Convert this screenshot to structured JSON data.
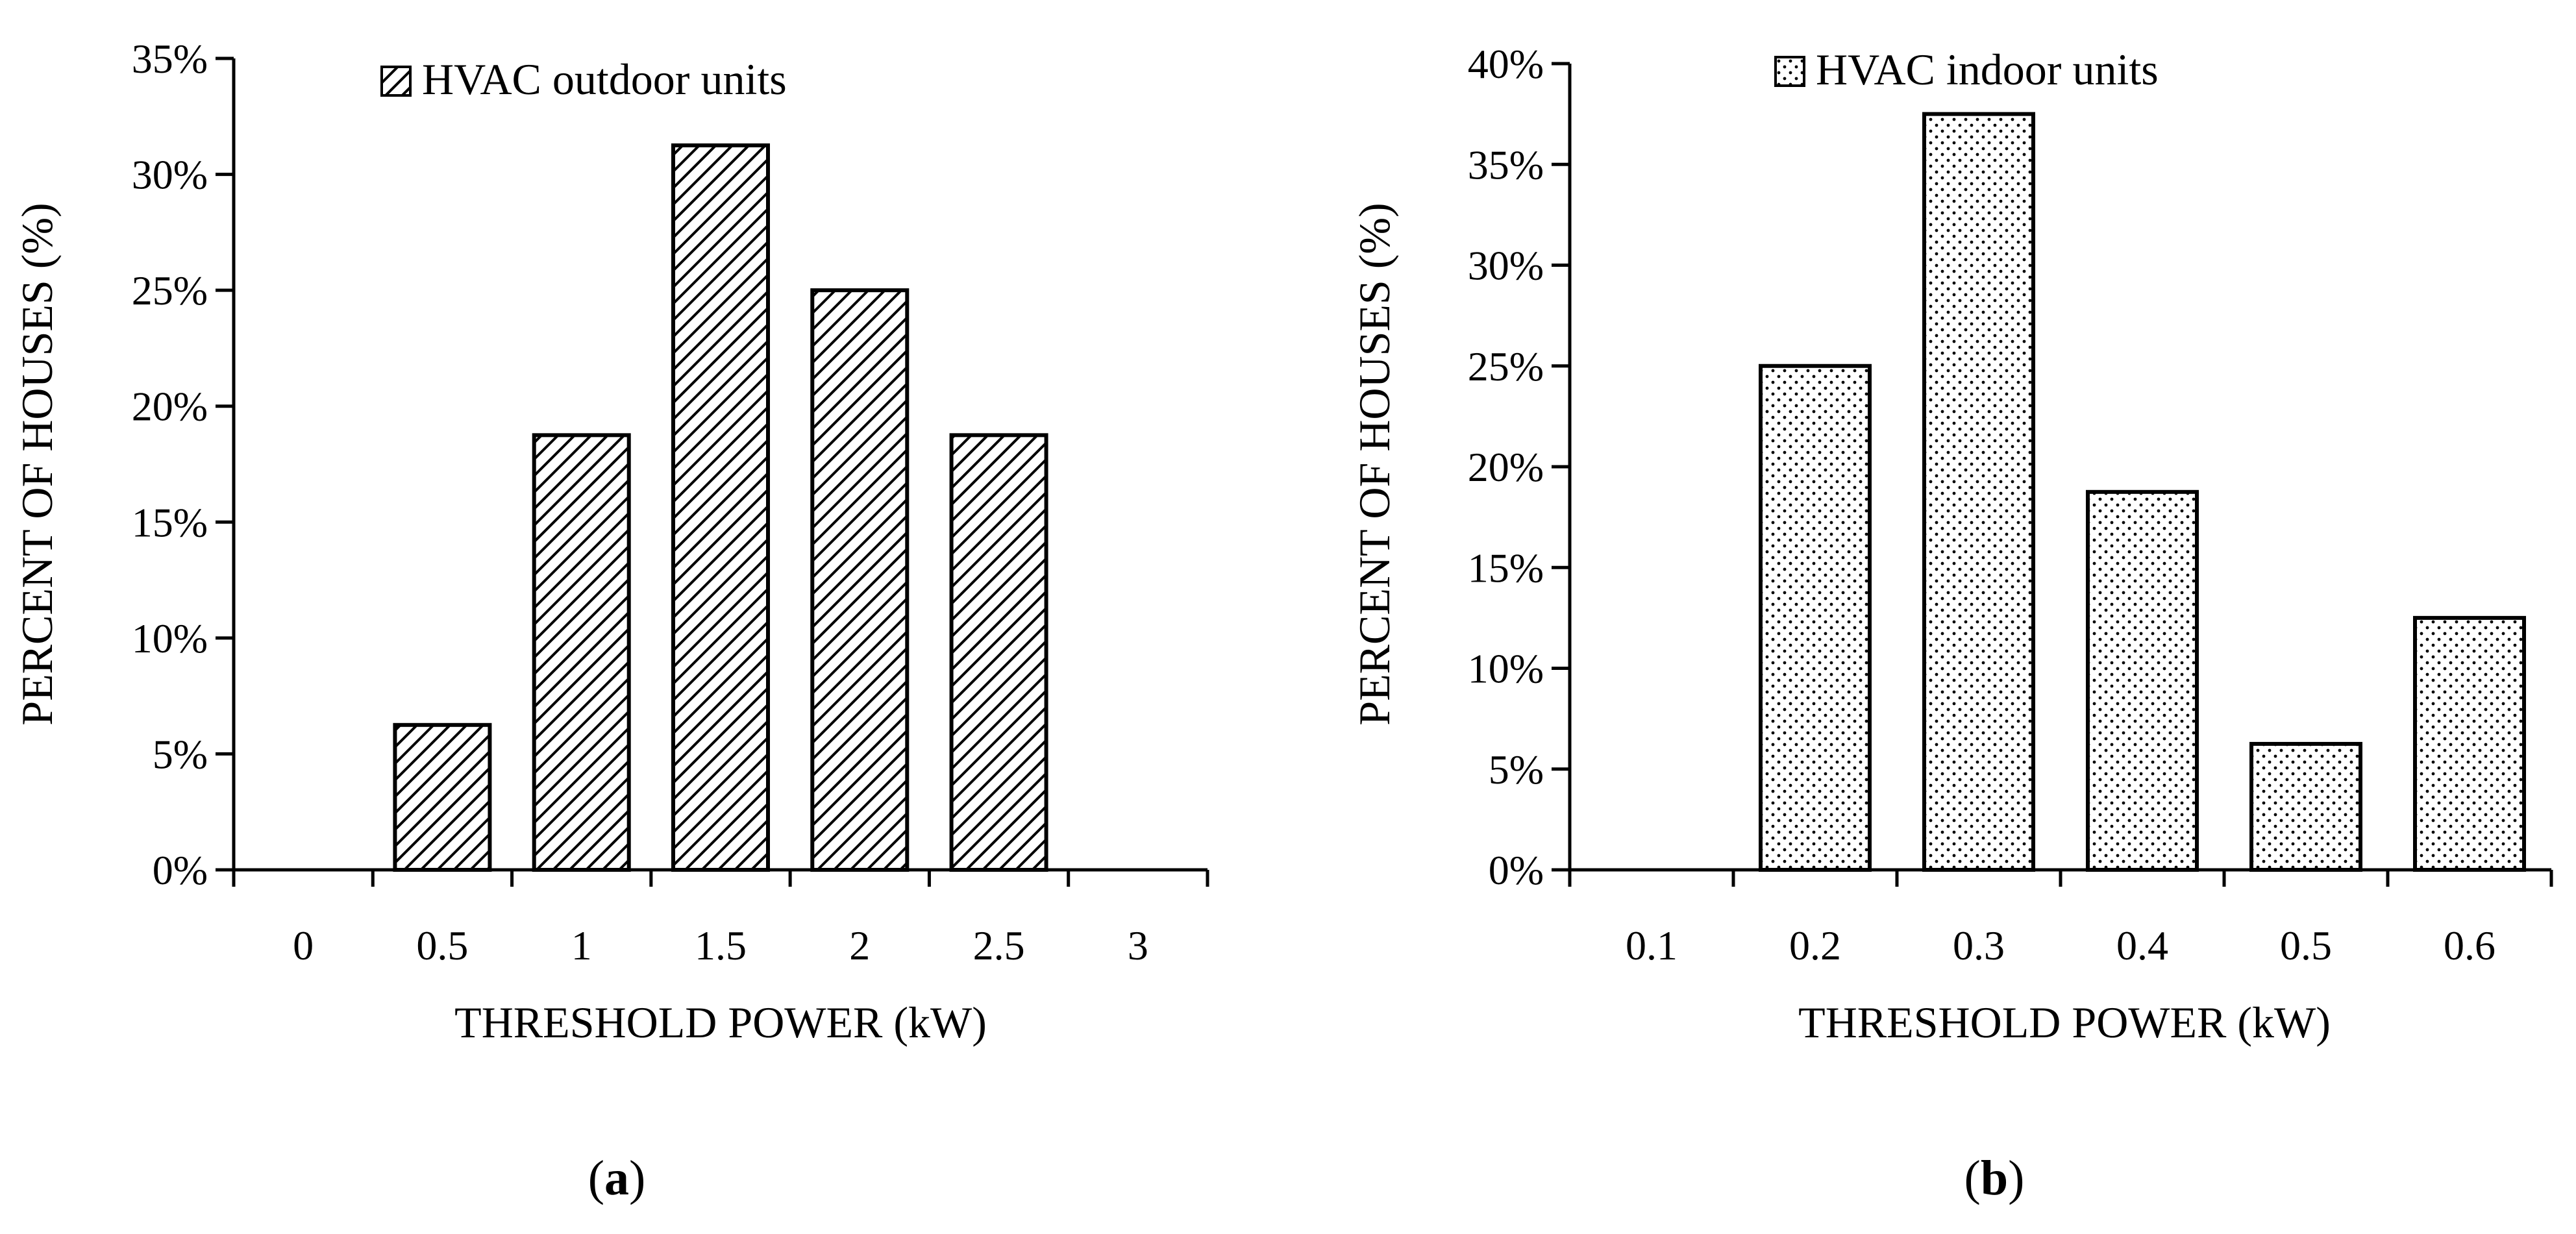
{
  "chart_data": [
    {
      "type": "bar",
      "panel_label": "a",
      "title": "",
      "legend": "HVAC outdoor units",
      "legend_position": "top-center",
      "pattern": "hatch",
      "categories": [
        "0",
        "0.5",
        "1",
        "1.5",
        "2",
        "2.5",
        "3"
      ],
      "values": [
        0,
        6.25,
        18.75,
        31.25,
        25,
        18.75,
        0
      ],
      "xlabel": "THRESHOLD POWER (kW)",
      "ylabel": "PERCENT OF HOUSES (%)",
      "ylim": [
        0,
        35
      ],
      "yticks": [
        0,
        5,
        10,
        15,
        20,
        25,
        30,
        35
      ],
      "ytick_labels": [
        "0%",
        "5%",
        "10%",
        "15%",
        "20%",
        "25%",
        "30%",
        "35%"
      ],
      "grid": false
    },
    {
      "type": "bar",
      "panel_label": "b",
      "title": "",
      "legend": "HVAC indoor units",
      "legend_position": "top-center",
      "pattern": "dots",
      "categories": [
        "0.1",
        "0.2",
        "0.3",
        "0.4",
        "0.5",
        "0.6"
      ],
      "values": [
        0,
        25,
        37.5,
        18.75,
        6.25,
        12.5
      ],
      "xlabel": "THRESHOLD POWER (kW)",
      "ylabel": "PERCENT OF HOUSES (%)",
      "ylim": [
        0,
        40
      ],
      "yticks": [
        0,
        5,
        10,
        15,
        20,
        25,
        30,
        35,
        40
      ],
      "ytick_labels": [
        "0%",
        "5%",
        "10%",
        "15%",
        "20%",
        "25%",
        "30%",
        "35%",
        "40%"
      ],
      "grid": false
    }
  ]
}
